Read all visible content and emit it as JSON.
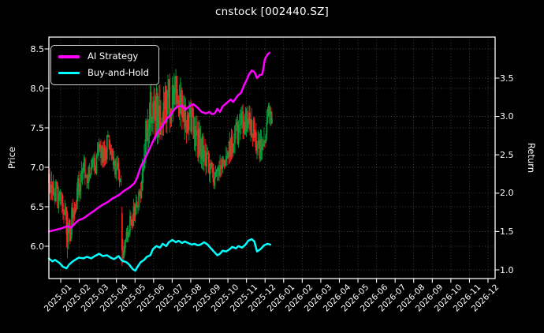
{
  "title": "cnstock [002440.SZ]",
  "legend": {
    "items": [
      {
        "label": "AI Strategy",
        "color": "#ff00ff"
      },
      {
        "label": "Buy-and-Hold",
        "color": "#00ffff"
      }
    ]
  },
  "axes": {
    "left": {
      "label": "Price",
      "tick_labels": [
        "8.5",
        "8.0",
        "7.5",
        "7.0",
        "6.5",
        "6.0"
      ],
      "tick_values": [
        8.5,
        8.0,
        7.5,
        7.0,
        6.5,
        6.0
      ]
    },
    "right": {
      "label": "Return",
      "tick_labels": [
        "3.5",
        "3.0",
        "2.5",
        "2.0",
        "1.5",
        "1.0"
      ],
      "tick_values": [
        3.5,
        3.0,
        2.5,
        2.0,
        1.5,
        1.0
      ]
    },
    "x": {
      "tick_labels": [
        "2025-01",
        "2025-02",
        "2025-03",
        "2025-04",
        "2025-05",
        "2025-06",
        "2025-07",
        "2025-08",
        "2025-09",
        "2025-10",
        "2025-11",
        "2025-12",
        "2026-01",
        "2026-02",
        "2026-03",
        "2026-04",
        "2026-05",
        "2026-06",
        "2026-07",
        "2026-08",
        "2026-09",
        "2026-10",
        "2026-11",
        "2026-12"
      ]
    }
  },
  "colors": {
    "background": "#000000",
    "text": "#ffffff",
    "grid": "rgba(255,255,255,0.33)",
    "spine": "#ffffff",
    "candle_up": "#00a23c",
    "candle_down": "#ff2121",
    "ai_strategy": "#ff00ff",
    "buy_and_hold": "#00ffff"
  },
  "chart_data": {
    "type": "candlestick+line",
    "title": "cnstock [002440.SZ]",
    "grid": true,
    "legend_position": "upper-left",
    "price_axis": {
      "label": "Price",
      "range_shown": [
        6.0,
        8.5
      ]
    },
    "return_axis": {
      "label": "Return",
      "range_shown": [
        1.0,
        3.5
      ]
    },
    "x_axis_months_shown": [
      "2025-01",
      "2026-12"
    ],
    "data_span_days": 254,
    "candle_envelope_note": "[day, high_band, low_band] envelope of daily OHLC bars read from chart (price axis)",
    "candle_envelope": [
      [
        0,
        7.0,
        6.62
      ],
      [
        6,
        6.9,
        6.5
      ],
      [
        12,
        6.75,
        6.4
      ],
      [
        18,
        6.6,
        6.25
      ],
      [
        21,
        6.45,
        5.85
      ],
      [
        22,
        6.3,
        5.95
      ],
      [
        26,
        6.55,
        6.1
      ],
      [
        30,
        6.75,
        6.4
      ],
      [
        36,
        7.05,
        6.6
      ],
      [
        40,
        7.18,
        6.75
      ],
      [
        44,
        7.0,
        6.7
      ],
      [
        50,
        7.15,
        6.8
      ],
      [
        56,
        7.35,
        6.95
      ],
      [
        62,
        7.45,
        7.0
      ],
      [
        66,
        7.52,
        7.05
      ],
      [
        70,
        7.3,
        6.95
      ],
      [
        76,
        7.2,
        6.85
      ],
      [
        80,
        7.1,
        6.7
      ],
      [
        82,
        6.9,
        6.4
      ],
      [
        83,
        6.45,
        5.75
      ],
      [
        86,
        6.2,
        5.85
      ],
      [
        90,
        6.4,
        6.05
      ],
      [
        94,
        6.55,
        6.2
      ],
      [
        98,
        6.65,
        6.3
      ],
      [
        102,
        6.75,
        6.45
      ],
      [
        105,
        7.0,
        6.6
      ],
      [
        108,
        7.4,
        6.9
      ],
      [
        112,
        7.9,
        7.2
      ],
      [
        116,
        8.1,
        7.4
      ],
      [
        120,
        8.0,
        7.25
      ],
      [
        124,
        8.15,
        7.3
      ],
      [
        128,
        7.95,
        7.35
      ],
      [
        132,
        8.1,
        7.45
      ],
      [
        136,
        8.2,
        7.4
      ],
      [
        140,
        8.15,
        7.55
      ],
      [
        144,
        8.28,
        7.65
      ],
      [
        148,
        8.2,
        7.55
      ],
      [
        152,
        7.95,
        7.4
      ],
      [
        156,
        7.85,
        7.3
      ],
      [
        160,
        7.9,
        7.35
      ],
      [
        164,
        7.75,
        7.25
      ],
      [
        168,
        7.65,
        7.1
      ],
      [
        172,
        7.55,
        7.0
      ],
      [
        176,
        7.4,
        6.95
      ],
      [
        180,
        7.25,
        6.85
      ],
      [
        184,
        7.1,
        6.75
      ],
      [
        188,
        7.0,
        6.72
      ],
      [
        192,
        7.1,
        6.8
      ],
      [
        196,
        7.25,
        6.9
      ],
      [
        200,
        7.35,
        7.0
      ],
      [
        205,
        7.45,
        7.05
      ],
      [
        210,
        7.55,
        7.15
      ],
      [
        215,
        7.7,
        7.25
      ],
      [
        220,
        7.8,
        7.35
      ],
      [
        226,
        7.8,
        7.4
      ],
      [
        230,
        7.75,
        7.3
      ],
      [
        234,
        7.6,
        7.15
      ],
      [
        238,
        7.45,
        7.05
      ],
      [
        242,
        7.55,
        7.1
      ],
      [
        246,
        7.7,
        7.3
      ],
      [
        250,
        7.85,
        7.45
      ],
      [
        253,
        7.8,
        7.55
      ]
    ],
    "spike_days": [
      {
        "d": 21,
        "o": 6.42,
        "h": 6.45,
        "l": 5.85,
        "c": 6.05
      },
      {
        "d": 83,
        "o": 6.42,
        "h": 6.5,
        "l": 5.75,
        "c": 5.95
      }
    ],
    "series": [
      {
        "name": "AI Strategy",
        "axis": "return",
        "color": "#ff00ff",
        "points": [
          [
            0,
            1.5
          ],
          [
            7,
            1.52
          ],
          [
            14,
            1.54
          ],
          [
            21,
            1.57
          ],
          [
            25,
            1.55
          ],
          [
            30,
            1.61
          ],
          [
            34,
            1.65
          ],
          [
            39,
            1.67
          ],
          [
            45,
            1.72
          ],
          [
            50,
            1.76
          ],
          [
            56,
            1.81
          ],
          [
            61,
            1.85
          ],
          [
            66,
            1.88
          ],
          [
            72,
            1.93
          ],
          [
            77,
            1.96
          ],
          [
            81,
            1.99
          ],
          [
            84,
            2.02
          ],
          [
            88,
            2.05
          ],
          [
            92,
            2.08
          ],
          [
            97,
            2.13
          ],
          [
            100,
            2.2
          ],
          [
            104,
            2.34
          ],
          [
            108,
            2.43
          ],
          [
            111,
            2.5
          ],
          [
            115,
            2.6
          ],
          [
            119,
            2.7
          ],
          [
            124,
            2.81
          ],
          [
            128,
            2.86
          ],
          [
            133,
            2.96
          ],
          [
            137,
            3.01
          ],
          [
            142,
            3.09
          ],
          [
            146,
            3.13
          ],
          [
            151,
            3.14
          ],
          [
            155,
            3.09
          ],
          [
            160,
            3.14
          ],
          [
            164,
            3.16
          ],
          [
            169,
            3.11
          ],
          [
            173,
            3.06
          ],
          [
            178,
            3.04
          ],
          [
            182,
            3.06
          ],
          [
            185,
            3.03
          ],
          [
            188,
            3.04
          ],
          [
            191,
            3.1
          ],
          [
            194,
            3.06
          ],
          [
            197,
            3.13
          ],
          [
            202,
            3.18
          ],
          [
            206,
            3.22
          ],
          [
            209,
            3.19
          ],
          [
            214,
            3.27
          ],
          [
            218,
            3.31
          ],
          [
            221,
            3.4
          ],
          [
            224,
            3.47
          ],
          [
            227,
            3.55
          ],
          [
            230,
            3.6
          ],
          [
            233,
            3.58
          ],
          [
            236,
            3.5
          ],
          [
            239,
            3.54
          ],
          [
            242,
            3.55
          ],
          [
            245,
            3.75
          ],
          [
            248,
            3.81
          ],
          [
            250,
            3.83
          ]
        ]
      },
      {
        "name": "Buy-and-Hold",
        "axis": "return",
        "color": "#00ffff",
        "points": [
          [
            0,
            1.15
          ],
          [
            4,
            1.11
          ],
          [
            7,
            1.13
          ],
          [
            12,
            1.09
          ],
          [
            16,
            1.04
          ],
          [
            20,
            1.02
          ],
          [
            23,
            1.07
          ],
          [
            27,
            1.11
          ],
          [
            31,
            1.14
          ],
          [
            34,
            1.16
          ],
          [
            39,
            1.15
          ],
          [
            43,
            1.17
          ],
          [
            48,
            1.15
          ],
          [
            52,
            1.18
          ],
          [
            57,
            1.21
          ],
          [
            61,
            1.18
          ],
          [
            66,
            1.19
          ],
          [
            70,
            1.16
          ],
          [
            74,
            1.14
          ],
          [
            79,
            1.18
          ],
          [
            83,
            1.12
          ],
          [
            88,
            1.1
          ],
          [
            91,
            1.07
          ],
          [
            95,
            1.01
          ],
          [
            98,
            0.99
          ],
          [
            100,
            1.03
          ],
          [
            104,
            1.1
          ],
          [
            108,
            1.13
          ],
          [
            111,
            1.17
          ],
          [
            115,
            1.19
          ],
          [
            118,
            1.27
          ],
          [
            122,
            1.31
          ],
          [
            126,
            1.29
          ],
          [
            129,
            1.34
          ],
          [
            133,
            1.31
          ],
          [
            136,
            1.36
          ],
          [
            140,
            1.39
          ],
          [
            144,
            1.36
          ],
          [
            147,
            1.38
          ],
          [
            151,
            1.35
          ],
          [
            154,
            1.37
          ],
          [
            158,
            1.35
          ],
          [
            162,
            1.33
          ],
          [
            165,
            1.34
          ],
          [
            169,
            1.32
          ],
          [
            172,
            1.33
          ],
          [
            176,
            1.36
          ],
          [
            180,
            1.33
          ],
          [
            183,
            1.29
          ],
          [
            187,
            1.24
          ],
          [
            191,
            1.19
          ],
          [
            194,
            1.21
          ],
          [
            197,
            1.25
          ],
          [
            201,
            1.24
          ],
          [
            205,
            1.27
          ],
          [
            208,
            1.3
          ],
          [
            212,
            1.28
          ],
          [
            215,
            1.31
          ],
          [
            219,
            1.29
          ],
          [
            223,
            1.33
          ],
          [
            226,
            1.38
          ],
          [
            230,
            1.4
          ],
          [
            233,
            1.37
          ],
          [
            236,
            1.24
          ],
          [
            240,
            1.27
          ],
          [
            244,
            1.32
          ],
          [
            248,
            1.34
          ],
          [
            251,
            1.33
          ]
        ]
      }
    ]
  }
}
